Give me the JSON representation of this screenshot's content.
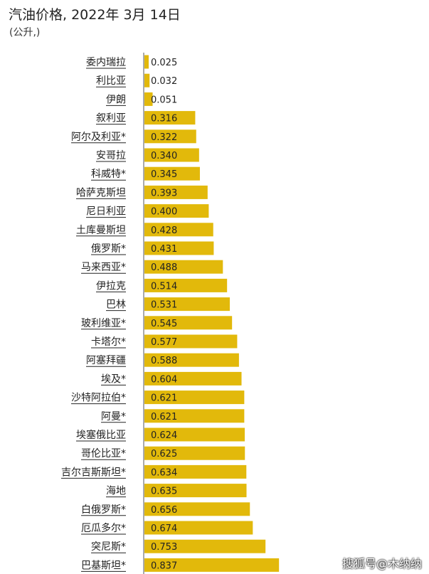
{
  "chart_data": {
    "type": "bar",
    "orientation": "horizontal",
    "title": "汽油价格, 2022年 3月 14日",
    "subtitle": "(公升,)",
    "categories": [
      "委内瑞拉",
      "利比亚",
      "伊朗",
      "叙利亚",
      "阿尔及利亚*",
      "安哥拉",
      "科威特*",
      "哈萨克斯坦",
      "尼日利亚",
      "土库曼斯坦",
      "俄罗斯*",
      "马来西亚*",
      "伊拉克",
      "巴林",
      "玻利维亚*",
      "卡塔尔*",
      "阿塞拜疆",
      "埃及*",
      "沙特阿拉伯*",
      "阿曼*",
      "埃塞俄比亚",
      "哥伦比亚*",
      "吉尔吉斯斯坦*",
      "海地",
      "白俄罗斯*",
      "厄瓜多尔*",
      "突尼斯*",
      "巴基斯坦*"
    ],
    "values": [
      0.025,
      0.032,
      0.051,
      0.316,
      0.322,
      0.34,
      0.345,
      0.393,
      0.4,
      0.428,
      0.431,
      0.488,
      0.514,
      0.531,
      0.545,
      0.577,
      0.588,
      0.604,
      0.621,
      0.621,
      0.624,
      0.625,
      0.634,
      0.635,
      0.656,
      0.674,
      0.753,
      0.837
    ],
    "value_labels": [
      "0.025",
      "0.032",
      "0.051",
      "0.316",
      "0.322",
      "0.340",
      "0.345",
      "0.393",
      "0.400",
      "0.428",
      "0.431",
      "0.488",
      "0.514",
      "0.531",
      "0.545",
      "0.577",
      "0.588",
      "0.604",
      "0.621",
      "0.621",
      "0.624",
      "0.625",
      "0.634",
      "0.635",
      "0.656",
      "0.674",
      "0.753",
      "0.837"
    ],
    "bar_color": "#e2b90b",
    "label_underline": true
  },
  "watermark": "搜狐号@木纳纳"
}
